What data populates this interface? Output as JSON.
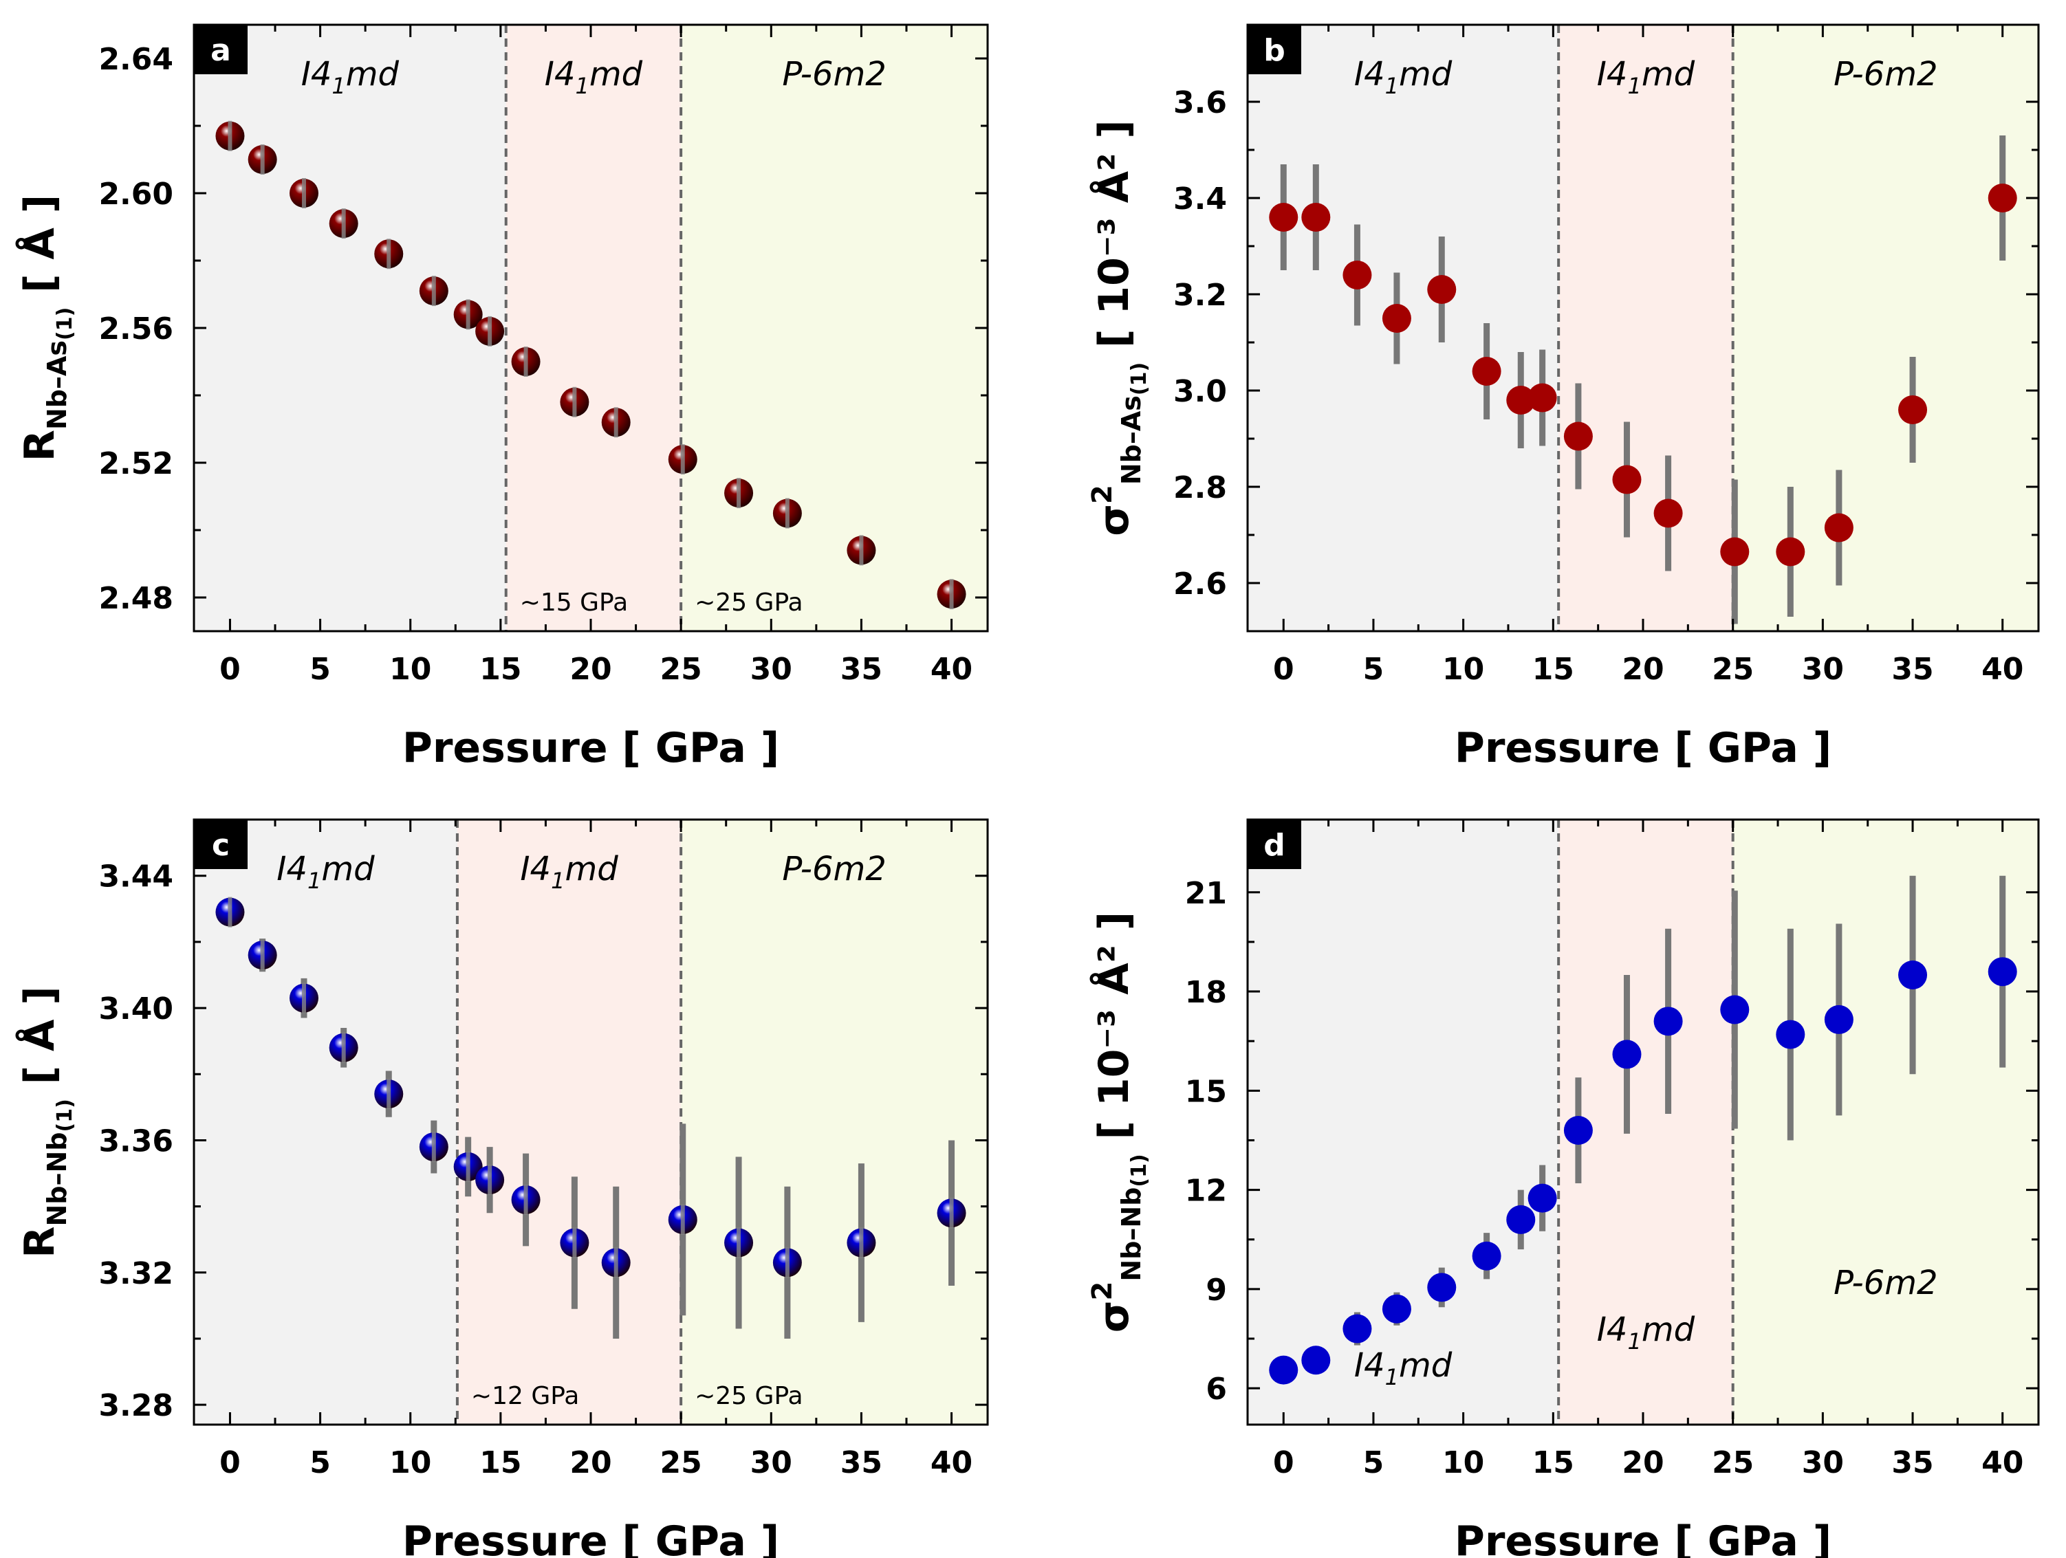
{
  "chart_data": [
    {
      "type": "scatter",
      "panel_label": "a",
      "marker": "sphere",
      "color": "#8b0000",
      "xlabel": "Pressure  [ GPa ]",
      "ylabel_main": "R",
      "ylabel_sub": "Nb–As",
      "ylabel_sub2": "(1)",
      "ylabel_unit": "[ Å ]",
      "xlim": [
        -2,
        42
      ],
      "ylim": [
        2.47,
        2.65
      ],
      "xticks": [
        0,
        5,
        10,
        15,
        20,
        25,
        30,
        35,
        40
      ],
      "yticks": [
        "2.48",
        "2.52",
        "2.56",
        "2.60",
        "2.64"
      ],
      "regions": [
        {
          "from": -2,
          "to": 15.3,
          "color": "#f2f2f2",
          "phase": "I4",
          "phase_sub": "1",
          "phase_tail": "md"
        },
        {
          "from": 15.3,
          "to": 25,
          "color": "#fdeeea",
          "phase": "I4",
          "phase_sub": "1",
          "phase_tail": "md"
        },
        {
          "from": 25,
          "to": 42,
          "color": "#f7fae6",
          "phase": "P-6m2",
          "phase_sub": "",
          "phase_tail": ""
        }
      ],
      "transitions": [
        {
          "x": 15.3,
          "label": "~15 GPa"
        },
        {
          "x": 25,
          "label": "~25 GPa"
        }
      ],
      "x": [
        0,
        1.8,
        4.1,
        6.3,
        8.8,
        11.3,
        13.2,
        14.4,
        16.4,
        19.1,
        21.4,
        25.1,
        28.2,
        30.9,
        35.0,
        40.0
      ],
      "y": [
        2.617,
        2.61,
        2.6,
        2.591,
        2.582,
        2.571,
        2.564,
        2.559,
        2.55,
        2.538,
        2.532,
        2.521,
        2.511,
        2.505,
        2.494,
        2.481
      ],
      "err": [
        0.004,
        0.004,
        0.004,
        0.004,
        0.004,
        0.004,
        0.004,
        0.004,
        0.004,
        0.004,
        0.004,
        0.004,
        0.004,
        0.004,
        0.004,
        0.004
      ]
    },
    {
      "type": "scatter",
      "panel_label": "b",
      "marker": "dot",
      "color": "#a30000",
      "xlabel": "Pressure  [ GPa ]",
      "ylabel_main": "σ",
      "ylabel_sup": "2",
      "ylabel_sub": "Nb–As",
      "ylabel_sub2": "(1)",
      "ylabel_unit": "[ 10⁻³ Å² ]",
      "xlim": [
        -2,
        42
      ],
      "ylim": [
        2.5,
        3.76
      ],
      "xticks": [
        0,
        5,
        10,
        15,
        20,
        25,
        30,
        35,
        40
      ],
      "yticks": [
        "2.6",
        "2.8",
        "3.0",
        "3.2",
        "3.4",
        "3.6"
      ],
      "regions": [
        {
          "from": -2,
          "to": 15.3,
          "color": "#f2f2f2",
          "phase": "I4",
          "phase_sub": "1",
          "phase_tail": "md"
        },
        {
          "from": 15.3,
          "to": 25,
          "color": "#fdeeea",
          "phase": "I4",
          "phase_sub": "1",
          "phase_tail": "md"
        },
        {
          "from": 25,
          "to": 42,
          "color": "#f7fae6",
          "phase": "P-6m2",
          "phase_sub": "",
          "phase_tail": ""
        }
      ],
      "transitions": [
        {
          "x": 15.3,
          "label": ""
        },
        {
          "x": 25,
          "label": ""
        }
      ],
      "x": [
        0,
        1.8,
        4.1,
        6.3,
        8.8,
        11.3,
        13.2,
        14.4,
        16.4,
        19.1,
        21.4,
        25.1,
        28.2,
        30.9,
        35.0,
        40.0
      ],
      "y": [
        3.36,
        3.36,
        3.24,
        3.15,
        3.21,
        3.04,
        2.98,
        2.985,
        2.905,
        2.815,
        2.745,
        2.665,
        2.665,
        2.715,
        2.96,
        3.4
      ],
      "err": [
        0.11,
        0.11,
        0.105,
        0.095,
        0.11,
        0.1,
        0.1,
        0.1,
        0.11,
        0.12,
        0.12,
        0.15,
        0.135,
        0.12,
        0.11,
        0.13
      ]
    },
    {
      "type": "scatter",
      "panel_label": "c",
      "marker": "sphere",
      "color": "#0000dd",
      "xlabel": "Pressure  [ GPa ]",
      "ylabel_main": "R",
      "ylabel_sub": "Nb–Nb",
      "ylabel_sub2": "(1)",
      "ylabel_unit": "[ Å ]",
      "xlim": [
        -2,
        42
      ],
      "ylim": [
        3.274,
        3.457
      ],
      "xticks": [
        0,
        5,
        10,
        15,
        20,
        25,
        30,
        35,
        40
      ],
      "yticks": [
        "3.28",
        "3.32",
        "3.36",
        "3.40",
        "3.44"
      ],
      "regions": [
        {
          "from": -2,
          "to": 12.6,
          "color": "#f2f2f2",
          "phase": "I4",
          "phase_sub": "1",
          "phase_tail": "md"
        },
        {
          "from": 12.6,
          "to": 25,
          "color": "#fdeeea",
          "phase": "I4",
          "phase_sub": "1",
          "phase_tail": "md"
        },
        {
          "from": 25,
          "to": 42,
          "color": "#f7fae6",
          "phase": "P-6m2",
          "phase_sub": "",
          "phase_tail": ""
        }
      ],
      "transitions": [
        {
          "x": 12.6,
          "label": "~12 GPa"
        },
        {
          "x": 25,
          "label": "~25 GPa"
        }
      ],
      "x": [
        0,
        1.8,
        4.1,
        6.3,
        8.8,
        11.3,
        13.2,
        14.4,
        16.4,
        19.1,
        21.4,
        25.1,
        28.2,
        30.9,
        35.0,
        40.0
      ],
      "y": [
        3.429,
        3.416,
        3.403,
        3.388,
        3.374,
        3.358,
        3.352,
        3.348,
        3.342,
        3.329,
        3.323,
        3.336,
        3.329,
        3.323,
        3.329,
        3.338
      ],
      "err": [
        0.004,
        0.005,
        0.006,
        0.006,
        0.007,
        0.008,
        0.009,
        0.01,
        0.014,
        0.02,
        0.023,
        0.029,
        0.026,
        0.023,
        0.024,
        0.022
      ]
    },
    {
      "type": "scatter",
      "panel_label": "d",
      "marker": "dot",
      "color": "#0000cc",
      "xlabel": "Pressure  [ GPa ]",
      "ylabel_main": "σ",
      "ylabel_sup": "2",
      "ylabel_sub": "Nb–Nb",
      "ylabel_sub2": "(1)",
      "ylabel_unit": "[ 10⁻³ Å² ]",
      "xlim": [
        -2,
        42
      ],
      "ylim": [
        4.9,
        23.2
      ],
      "xticks": [
        0,
        5,
        10,
        15,
        20,
        25,
        30,
        35,
        40
      ],
      "yticks": [
        "6",
        "9",
        "12",
        "15",
        "18",
        "21"
      ],
      "regions": [
        {
          "from": -2,
          "to": 15.3,
          "color": "#f2f2f2",
          "phase": "I4",
          "phase_sub": "1",
          "phase_tail": "md"
        },
        {
          "from": 15.3,
          "to": 25,
          "color": "#fdeeea",
          "phase": "I4",
          "phase_sub": "1",
          "phase_tail": "md"
        },
        {
          "from": 25,
          "to": 42,
          "color": "#f7fae6",
          "phase": "P-6m2",
          "phase_sub": "",
          "phase_tail": ""
        }
      ],
      "phase_label_pos": "lower",
      "transitions": [
        {
          "x": 15.3,
          "label": ""
        },
        {
          "x": 25,
          "label": ""
        }
      ],
      "x": [
        0,
        1.8,
        4.1,
        6.3,
        8.8,
        11.3,
        13.2,
        14.4,
        16.4,
        19.1,
        21.4,
        25.1,
        28.2,
        30.9,
        35.0,
        40.0
      ],
      "y": [
        6.55,
        6.85,
        7.8,
        8.4,
        9.05,
        10.0,
        11.1,
        11.75,
        13.8,
        16.1,
        17.1,
        17.45,
        16.7,
        17.15,
        18.5,
        18.6
      ],
      "err": [
        0.4,
        0.4,
        0.5,
        0.5,
        0.6,
        0.7,
        0.9,
        1.0,
        1.6,
        2.4,
        2.8,
        3.6,
        3.2,
        2.9,
        3.0,
        2.9
      ]
    }
  ]
}
